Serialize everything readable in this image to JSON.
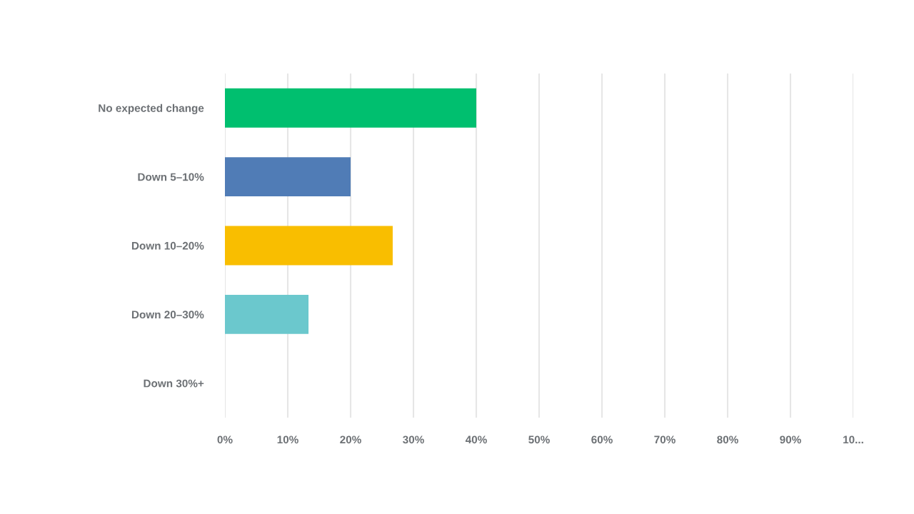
{
  "chart_data": {
    "type": "bar",
    "orientation": "horizontal",
    "categories": [
      "No expected change",
      "Down 5–10%",
      "Down 10–20%",
      "Down 20–30%",
      "Down 30%+"
    ],
    "values": [
      40,
      20,
      26.7,
      13.3,
      0
    ],
    "colors": [
      "#00bf6f",
      "#507cb6",
      "#f9be00",
      "#6bc8cd",
      "#cccccc"
    ],
    "xlim": [
      0,
      100
    ],
    "xticks": [
      {
        "value": 0,
        "label": "0%"
      },
      {
        "value": 10,
        "label": "10%"
      },
      {
        "value": 20,
        "label": "20%"
      },
      {
        "value": 30,
        "label": "30%"
      },
      {
        "value": 40,
        "label": "40%"
      },
      {
        "value": 50,
        "label": "50%"
      },
      {
        "value": 60,
        "label": "60%"
      },
      {
        "value": 70,
        "label": "70%"
      },
      {
        "value": 80,
        "label": "80%"
      },
      {
        "value": 90,
        "label": "90%"
      },
      {
        "value": 100,
        "label": "10..."
      }
    ],
    "grid": "x",
    "legend": false
  }
}
